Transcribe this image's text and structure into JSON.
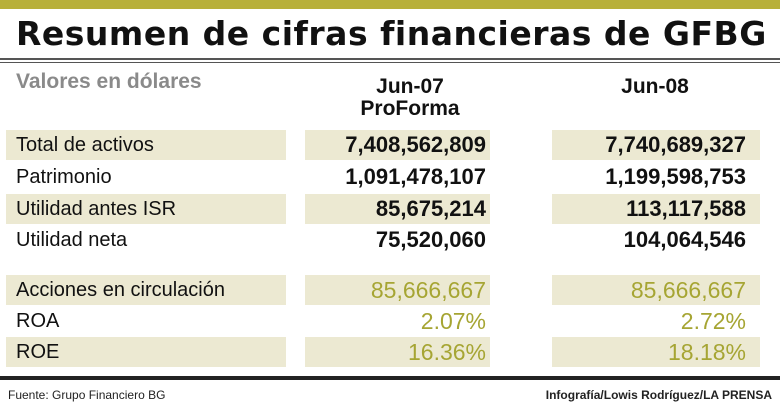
{
  "title": "Resumen de cifras financieras de GFBG",
  "subtitle": "Valores en dólares",
  "columns": [
    {
      "line1": "Jun-07",
      "line2": "ProForma"
    },
    {
      "line1": "Jun-08",
      "line2": ""
    }
  ],
  "rows": [
    {
      "label": "Total de activos",
      "jun07": "7,408,562,809",
      "jun08": "7,740,689,327"
    },
    {
      "label": "Patrimonio",
      "jun07": "1,091,478,107",
      "jun08": "1,199,598,753"
    },
    {
      "label": "Utilidad antes ISR",
      "jun07": "85,675,214",
      "jun08": "113,117,588"
    },
    {
      "label": "Utilidad neta",
      "jun07": "75,520,060",
      "jun08": "104,064,546"
    },
    {
      "label": "Acciones en circulación",
      "jun07": "85,666,667",
      "jun08": "85,666,667"
    },
    {
      "label": "ROA",
      "jun07": "2.07%",
      "jun08": "2.72%"
    },
    {
      "label": "ROE",
      "jun07": "16.36%",
      "jun08": "18.18%"
    }
  ],
  "footer": {
    "source": "Fuente: Grupo Financiero BG",
    "credit": "Infografía/Lowis Rodríguez/LA PRENSA"
  },
  "colors": {
    "accent": "#b8b03a",
    "row_shade": "#ece9d2",
    "olive_text": "#a6a533"
  }
}
